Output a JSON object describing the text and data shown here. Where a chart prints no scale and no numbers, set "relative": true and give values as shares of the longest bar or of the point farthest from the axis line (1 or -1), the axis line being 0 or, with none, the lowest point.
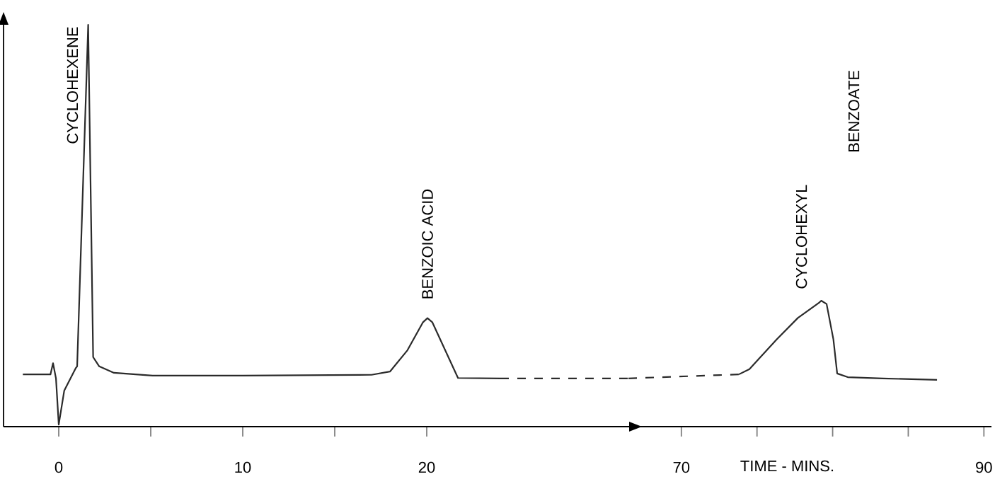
{
  "chart_data": [
    {
      "type": "line",
      "relative": true,
      "xlim": [
        -3,
        31
      ],
      "xticks": [
        0,
        {
          "value": 5,
          "label": null
        },
        10,
        {
          "value": 15,
          "label": null
        },
        20
      ],
      "series": [
        {
          "color": "#2b2b2b",
          "line_style": "solid",
          "x": [
            -1.95,
            -0.45,
            -0.31,
            -0.15,
            0,
            0.3,
            0.93,
            1.0,
            1.6,
            1.87,
            2.2,
            3.0,
            5.1,
            10,
            17,
            18.0,
            18.95,
            19.8,
            20.04,
            20.3,
            21.7,
            24
          ],
          "values": [
            0.13,
            0.13,
            0.158,
            0.12,
            0.005,
            0.09,
            0.146,
            0.15,
            1.0,
            0.173,
            0.15,
            0.134,
            0.127,
            0.127,
            0.129,
            0.137,
            0.19,
            0.26,
            0.27,
            0.26,
            0.121,
            0.12
          ]
        },
        {
          "color": "#2b2b2b",
          "line_style": "dashed",
          "x": [
            24,
            31
          ],
          "values": [
            0.12,
            0.12
          ]
        }
      ],
      "annotations": [
        {
          "text": "CYCLOHEXENE",
          "x": 1.6,
          "y": 1.0
        },
        {
          "text": "BENZOIC ACID",
          "x": 20.04,
          "y": 0.27
        }
      ]
    },
    {
      "type": "line",
      "relative": true,
      "xlim": [
        66.5,
        90.5
      ],
      "xticks": [
        70,
        {
          "value": 75,
          "label": null
        },
        {
          "value": 80,
          "label": null
        },
        {
          "value": 85,
          "label": null
        },
        90
      ],
      "xlabel": "TIME - MINS.",
      "series": [
        {
          "color": "#2b2b2b",
          "line_style": "dashed",
          "x": [
            66.5,
            73.8
          ],
          "values": [
            0.383,
            0.415
          ]
        },
        {
          "color": "#2b2b2b",
          "line_style": "solid",
          "x": [
            73.8,
            74.5,
            76.3,
            77.7,
            79.1,
            79.25,
            79.6,
            80.05,
            80.3,
            81,
            83.3,
            86.9
          ],
          "values": [
            0.415,
            0.457,
            0.693,
            0.863,
            0.984,
            1,
            0.974,
            0.693,
            0.422,
            0.393,
            0.383,
            0.371
          ]
        }
      ],
      "annotations": [
        {
          "text": "CYCLOHEXYL",
          "x": 79.25,
          "y": 1
        },
        "BENZOATE"
      ]
    }
  ]
}
